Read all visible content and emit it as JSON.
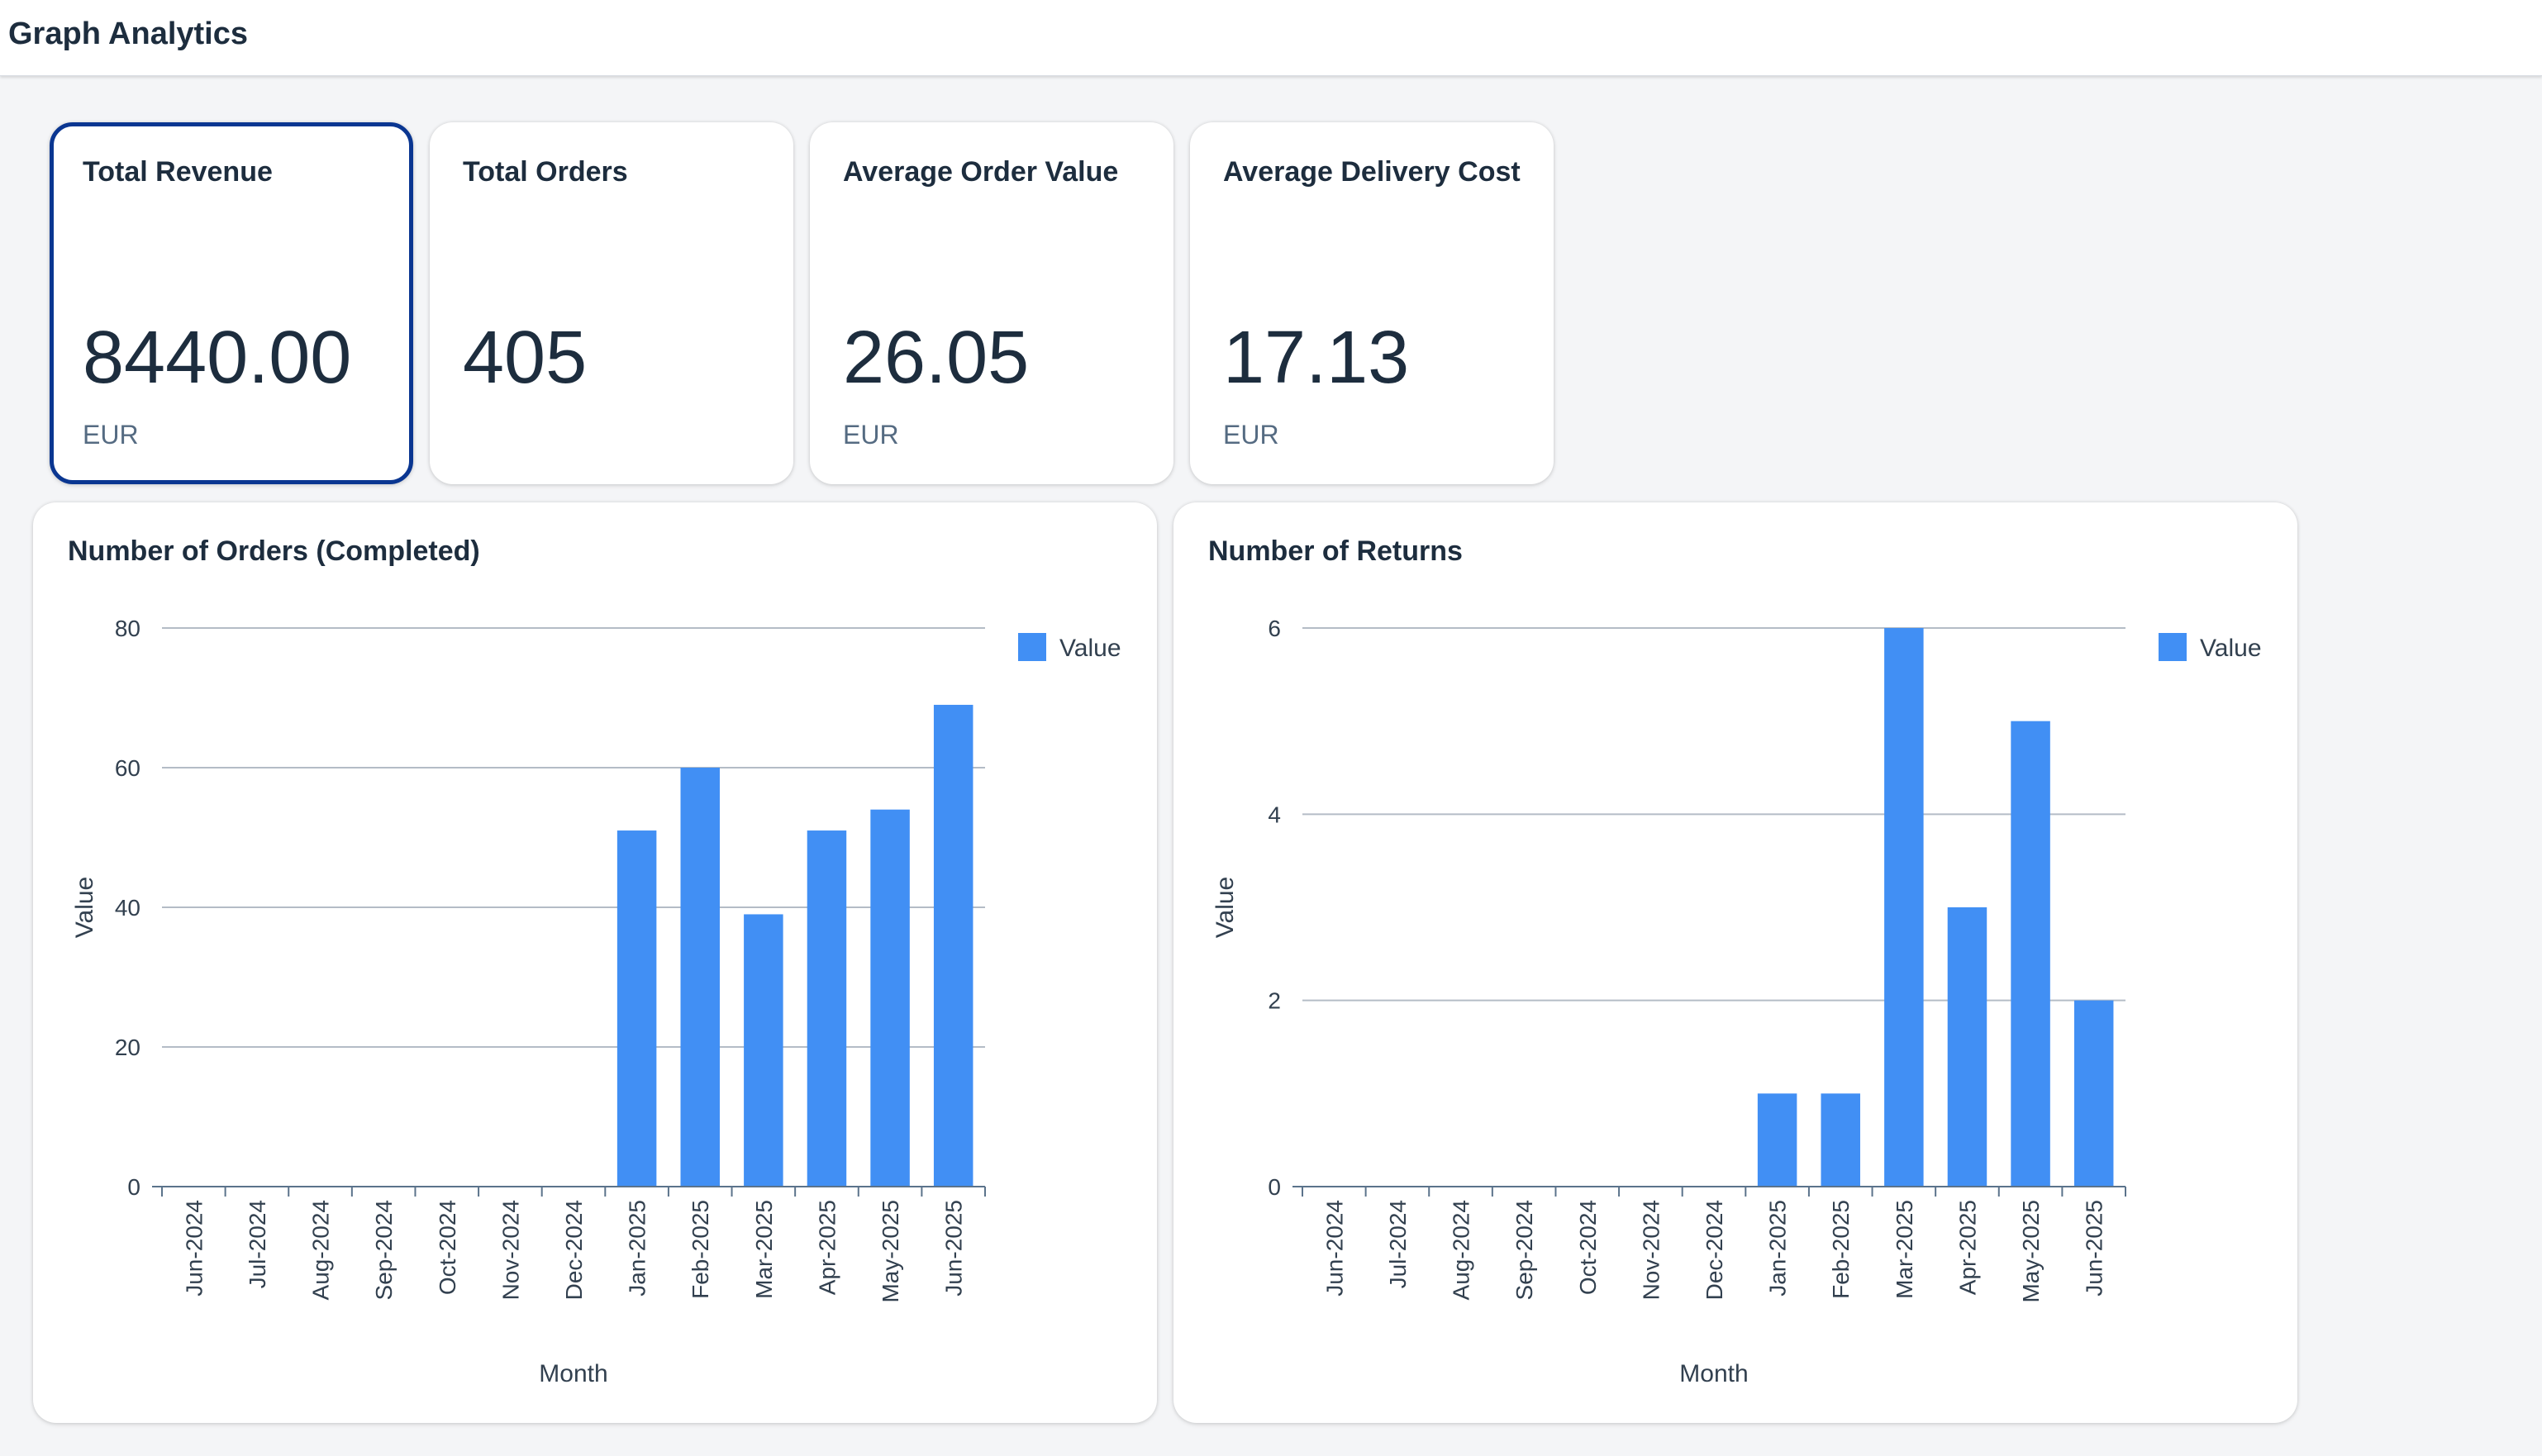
{
  "header": {
    "title": "Graph Analytics"
  },
  "kpis": [
    {
      "title": "Total Revenue",
      "value": "8440.00",
      "unit": "EUR",
      "selected": true
    },
    {
      "title": "Total Orders",
      "value": "405",
      "unit": ""
    },
    {
      "title": "Average Order Value",
      "value": "26.05",
      "unit": "EUR"
    },
    {
      "title": "Average Delivery Cost",
      "value": "17.13",
      "unit": "EUR"
    }
  ],
  "charts": [
    {
      "title": "Number of Orders (Completed)"
    },
    {
      "title": "Number of Returns"
    }
  ],
  "colors": {
    "bar": "#418ff4",
    "selected_border": "#0a3691",
    "grid": "#b4bcc6"
  },
  "chart_data": [
    {
      "type": "bar",
      "title": "Number of Orders (Completed)",
      "xlabel": "Month",
      "ylabel": "Value",
      "categories": [
        "Jun-2024",
        "Jul-2024",
        "Aug-2024",
        "Sep-2024",
        "Oct-2024",
        "Nov-2024",
        "Dec-2024",
        "Jan-2025",
        "Feb-2025",
        "Mar-2025",
        "Apr-2025",
        "May-2025",
        "Jun-2025"
      ],
      "series": [
        {
          "name": "Value",
          "values": [
            0,
            0,
            0,
            0,
            0,
            0,
            0,
            51,
            60,
            39,
            51,
            54,
            69
          ]
        }
      ],
      "ylim": [
        0,
        80
      ],
      "yticks": [
        0,
        20,
        40,
        60,
        80
      ],
      "grid": true,
      "legend": "top-right"
    },
    {
      "type": "bar",
      "title": "Number of Returns",
      "xlabel": "Month",
      "ylabel": "Value",
      "categories": [
        "Jun-2024",
        "Jul-2024",
        "Aug-2024",
        "Sep-2024",
        "Oct-2024",
        "Nov-2024",
        "Dec-2024",
        "Jan-2025",
        "Feb-2025",
        "Mar-2025",
        "Apr-2025",
        "May-2025",
        "Jun-2025"
      ],
      "series": [
        {
          "name": "Value",
          "values": [
            0,
            0,
            0,
            0,
            0,
            0,
            0,
            1,
            1,
            6,
            3,
            5,
            2
          ]
        }
      ],
      "ylim": [
        0,
        6
      ],
      "yticks": [
        0,
        2,
        4,
        6
      ],
      "grid": true,
      "legend": "top-right"
    }
  ]
}
